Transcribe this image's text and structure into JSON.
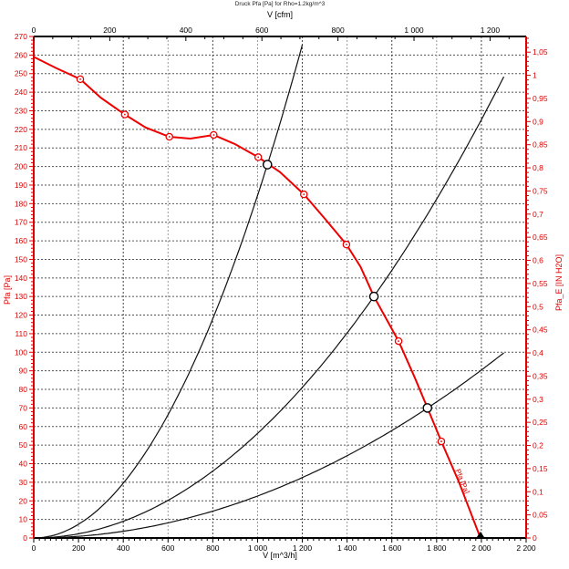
{
  "chart_data": {
    "type": "line",
    "title": "Druck Pfa [Pa] for Rho=1.2kg/m^3",
    "accent_color": "#dd0000",
    "curve_color": "#ee0000",
    "system_curve_color": "#111111",
    "axes": {
      "top": {
        "label": "V [cfm]",
        "min": 0,
        "max": 1294.8,
        "major": 200,
        "minor": 50,
        "m3h_per_cfm": 1.699,
        "tick_labels": [
          "0",
          "200",
          "400",
          "600",
          "800",
          "1 000",
          "1 200"
        ]
      },
      "bottom": {
        "label": "V [m^3/h]",
        "min": 0,
        "max": 2200,
        "major": 200,
        "minor": 25,
        "tick_labels": [
          "0",
          "200",
          "400",
          "600",
          "800",
          "1 000",
          "1 200",
          "1 400",
          "1 600",
          "1 800",
          "2 000",
          "2 200"
        ]
      },
      "left": {
        "label": "Pfa [Pa]",
        "min": 0,
        "max": 270,
        "major": 10,
        "minor": 2,
        "tick_labels": [
          "0",
          "10",
          "20",
          "30",
          "40",
          "50",
          "60",
          "70",
          "80",
          "90",
          "100",
          "110",
          "120",
          "130",
          "140",
          "150",
          "160",
          "170",
          "180",
          "190",
          "200",
          "210",
          "220",
          "230",
          "240",
          "250",
          "260",
          "270"
        ]
      },
      "right": {
        "label": "Pfa_E [IN H2O]",
        "min": 0,
        "max": 1.0839,
        "major": 0.05,
        "minor": 0.01,
        "tick_labels": [
          "0",
          "0,05",
          "0,1",
          "0,15",
          "0,2",
          "0,25",
          "0,3",
          "0,35",
          "0,4",
          "0,45",
          "0,5",
          "0,55",
          "0,6",
          "0,65",
          "0,7",
          "0,75",
          "0,8",
          "0,85",
          "0,9",
          "0,95",
          "1",
          "1,05"
        ]
      }
    },
    "grid": {
      "h_step_pa": 10,
      "h_color": "#555555",
      "v_step_m3h": 200,
      "v_major_color": "#444444",
      "v_minor_color": "#999999",
      "dash": "2 2"
    },
    "series": {
      "fan_curve": {
        "name": "Pfa [Pa]",
        "curve_label": "Pfa [Pa]",
        "points": [
          [
            0,
            259
          ],
          [
            100,
            253
          ],
          [
            208,
            247
          ],
          [
            300,
            237
          ],
          [
            407,
            228
          ],
          [
            500,
            221
          ],
          [
            606,
            216
          ],
          [
            700,
            215
          ],
          [
            804,
            217
          ],
          [
            900,
            212
          ],
          [
            1003,
            205
          ],
          [
            1100,
            197
          ],
          [
            1207,
            185
          ],
          [
            1300,
            172
          ],
          [
            1397,
            158
          ],
          [
            1460,
            146
          ],
          [
            1520,
            130
          ],
          [
            1630,
            106
          ],
          [
            1700,
            87
          ],
          [
            1759,
            70
          ],
          [
            1821,
            52
          ],
          [
            1900,
            30
          ],
          [
            1996,
            0
          ]
        ],
        "markers": [
          [
            208,
            247
          ],
          [
            407,
            228
          ],
          [
            606,
            216
          ],
          [
            804,
            217
          ],
          [
            1003,
            205
          ],
          [
            1207,
            185
          ],
          [
            1397,
            158
          ],
          [
            1630,
            106
          ],
          [
            1821,
            52
          ]
        ]
      },
      "system_curves": [
        {
          "k": 0.0001844,
          "v_end": 1215
        },
        {
          "k": 5.63e-05,
          "v_end": 2110
        },
        {
          "k": 2.26e-05,
          "v_end": 2100
        }
      ],
      "operating_points": [
        [
          1044,
          201
        ],
        [
          1520,
          130
        ],
        [
          1759,
          70
        ]
      ]
    }
  }
}
